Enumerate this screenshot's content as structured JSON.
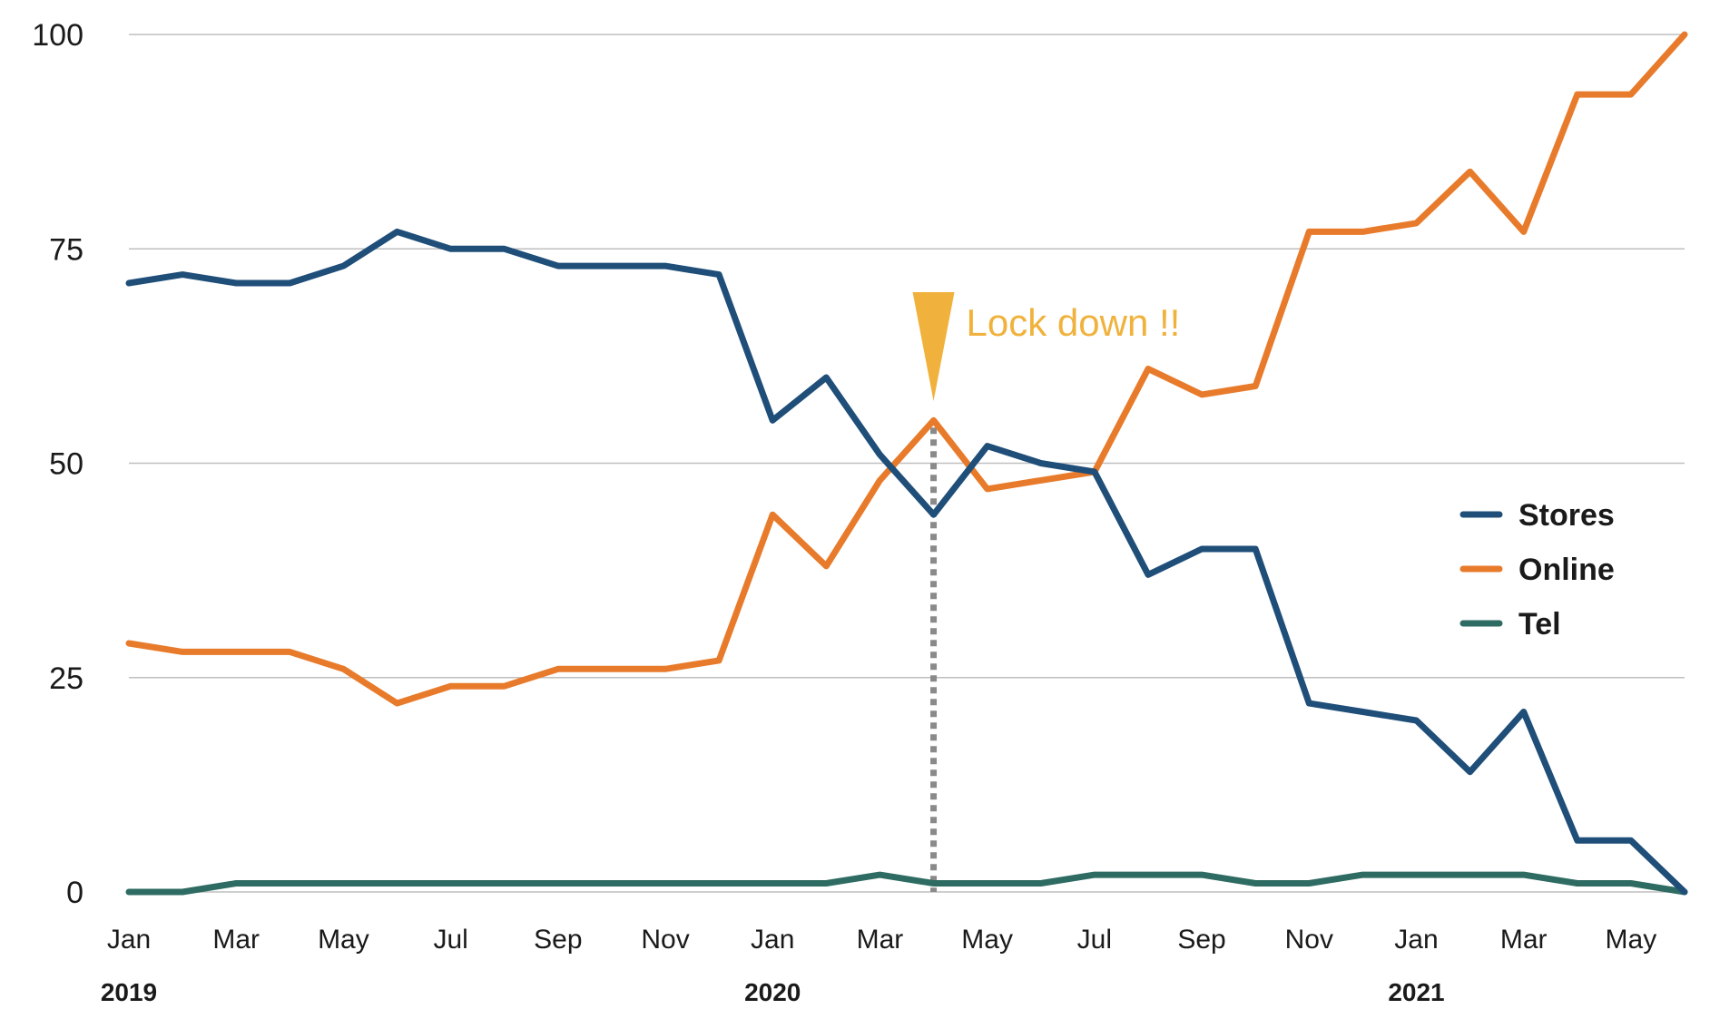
{
  "chart_data": {
    "type": "line",
    "title": "",
    "xlabel": "",
    "ylabel": "",
    "ylim": [
      0,
      100
    ],
    "yticks": [
      "0",
      "25",
      "50",
      "75",
      "100"
    ],
    "x": [
      "2019-01",
      "2019-02",
      "2019-03",
      "2019-04",
      "2019-05",
      "2019-06",
      "2019-07",
      "2019-08",
      "2019-09",
      "2019-10",
      "2019-11",
      "2019-12",
      "2020-01",
      "2020-02",
      "2020-03",
      "2020-04",
      "2020-05",
      "2020-06",
      "2020-07",
      "2020-08",
      "2020-09",
      "2020-10",
      "2020-11",
      "2020-12",
      "2021-01",
      "2021-02",
      "2021-03",
      "2021-04",
      "2021-05",
      "2021-06"
    ],
    "x_tick_labels": [
      "Jan",
      "Mar",
      "May",
      "Jul",
      "Sep",
      "Nov",
      "Jan",
      "Mar",
      "May",
      "Jul",
      "Sep",
      "Nov",
      "Jan",
      "Mar",
      "May"
    ],
    "year_labels": [
      "2019",
      "2020",
      "2021"
    ],
    "grid": "horizontal",
    "legend": "right",
    "series": [
      {
        "name": "Stores",
        "color": "#1f4e79",
        "values": [
          71,
          72,
          71,
          71,
          73,
          77,
          75,
          75,
          73,
          73,
          73,
          72,
          55,
          60,
          51,
          44,
          52,
          50,
          49,
          37,
          40,
          40,
          22,
          21,
          20,
          14,
          21,
          6,
          6,
          0
        ]
      },
      {
        "name": "Online",
        "color": "#e87b2b",
        "values": [
          29,
          28,
          28,
          28,
          26,
          22,
          24,
          24,
          26,
          26,
          26,
          27,
          44,
          38,
          48,
          55,
          47,
          48,
          49,
          61,
          58,
          59,
          77,
          77,
          78,
          84,
          77,
          93,
          93,
          100
        ]
      },
      {
        "name": "Tel",
        "color": "#2e6b62",
        "values": [
          0,
          0,
          1,
          1,
          1,
          1,
          1,
          1,
          1,
          1,
          1,
          1,
          1,
          1,
          2,
          1,
          1,
          1,
          2,
          2,
          2,
          1,
          1,
          2,
          2,
          2,
          2,
          1,
          1,
          0
        ]
      }
    ],
    "annotations": [
      {
        "text": "Lock down !!",
        "x": "2020-04",
        "color": "#f0b23c",
        "line_color": "#8a8a8a"
      }
    ]
  }
}
